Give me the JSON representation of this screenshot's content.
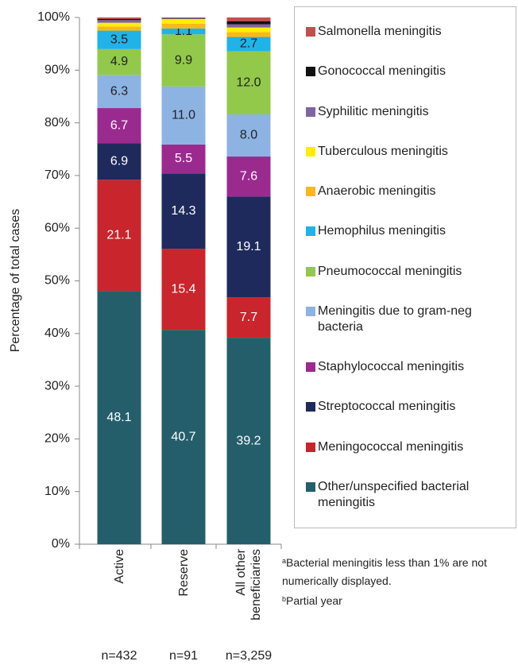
{
  "chart_data": {
    "type": "stacked_bar",
    "y_label": "Percentage of total cases",
    "categories": [
      "Active",
      "Reserve",
      "All other beneficiaries"
    ],
    "n_labels": [
      "n=432",
      "n=91",
      "n=3,259"
    ],
    "ylim": [
      0,
      100
    ],
    "yticks": [
      {
        "value": 0,
        "label": "0%"
      },
      {
        "value": 10,
        "label": "10%"
      },
      {
        "value": 20,
        "label": "20%"
      },
      {
        "value": 30,
        "label": "30%"
      },
      {
        "value": 40,
        "label": "40%"
      },
      {
        "value": 50,
        "label": "50%"
      },
      {
        "value": 60,
        "label": "60%"
      },
      {
        "value": 70,
        "label": "70%"
      },
      {
        "value": 80,
        "label": "80%"
      },
      {
        "value": 90,
        "label": "90%"
      },
      {
        "value": 100,
        "label": "100%"
      }
    ],
    "series": [
      {
        "name": "Other/unspecified bacterial meningitis",
        "color": "#245e6b",
        "label_color": "#ffffff",
        "values": [
          48.1,
          40.7,
          39.2
        ],
        "value_labels": [
          "48.1",
          "40.7",
          "39.2"
        ]
      },
      {
        "name": "Meningococcal meningitis",
        "color": "#c9252c",
        "label_color": "#ffffff",
        "values": [
          21.1,
          15.4,
          7.7
        ],
        "value_labels": [
          "21.1",
          "15.4",
          "7.7"
        ]
      },
      {
        "name": "Streptococcal meningitis",
        "color": "#1f2a5c",
        "label_color": "#ffffff",
        "values": [
          6.9,
          14.3,
          19.1
        ],
        "value_labels": [
          "6.9",
          "14.3",
          "19.1"
        ]
      },
      {
        "name": "Staphylococcal meningitis",
        "color": "#9b2a8f",
        "label_color": "#ffffff",
        "values": [
          6.7,
          5.5,
          7.6
        ],
        "value_labels": [
          "6.7",
          "5.5",
          "7.6"
        ]
      },
      {
        "name": "Meningitis due to gram-neg bacteria",
        "color": "#8db3e2",
        "label_color": "#222222",
        "values": [
          6.3,
          11.0,
          8.0
        ],
        "value_labels": [
          "6.3",
          "11.0",
          "8.0"
        ]
      },
      {
        "name": "Pneumococcal meningitis",
        "color": "#92c94a",
        "label_color": "#222222",
        "values": [
          4.9,
          9.9,
          12.0
        ],
        "value_labels": [
          "4.9",
          "9.9",
          "12.0"
        ]
      },
      {
        "name": "Hemophilus meningitis",
        "color": "#1fb3e8",
        "label_color": "#222222",
        "values": [
          3.5,
          1.1,
          2.7
        ],
        "value_labels": [
          "3.5",
          "1.1",
          "2.7"
        ]
      },
      {
        "name": "Anaerobic meningitis",
        "color": "#fbb917",
        "label_color": "#222222",
        "values": [
          0.8,
          0.9,
          0.9
        ],
        "value_labels": [
          null,
          null,
          null
        ]
      },
      {
        "name": "Tuberculous meningitis",
        "color": "#ffee00",
        "label_color": "#222222",
        "values": [
          0.7,
          0.9,
          0.9
        ],
        "value_labels": [
          null,
          null,
          null
        ]
      },
      {
        "name": "Syphilitic meningitis",
        "color": "#8064a2",
        "label_color": "#222222",
        "values": [
          0.5,
          0.1,
          0.6
        ],
        "value_labels": [
          null,
          null,
          null
        ]
      },
      {
        "name": "Gonococcal meningitis",
        "color": "#111111",
        "label_color": "#ffffff",
        "values": [
          0.2,
          0.1,
          0.6
        ],
        "value_labels": [
          null,
          null,
          null
        ]
      },
      {
        "name": "Salmonella meningitis",
        "color": "#c0504d",
        "label_color": "#ffffff",
        "values": [
          0.3,
          0.1,
          0.7
        ],
        "value_labels": [
          null,
          null,
          null
        ]
      }
    ],
    "footnotes": [
      {
        "marker": "a",
        "text": "Bacterial meningitis less than 1% are not numerically displayed."
      },
      {
        "marker": "b",
        "text": "Partial year"
      }
    ]
  }
}
